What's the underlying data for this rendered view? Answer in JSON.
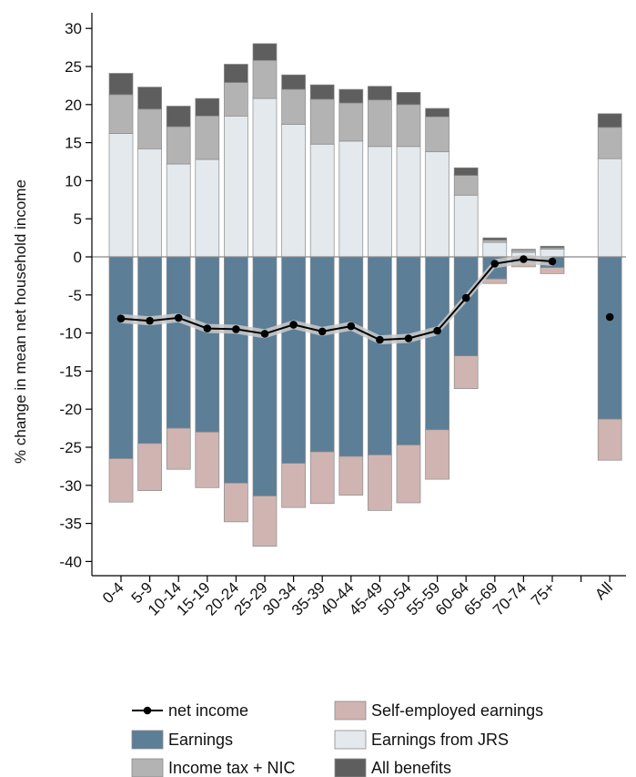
{
  "chart_data": {
    "type": "bar",
    "stacked": true,
    "ylabel": "% change in mean net household income",
    "xlabel": "",
    "ylim": [
      -42,
      32
    ],
    "yticks": [
      30,
      25,
      20,
      15,
      10,
      5,
      0,
      -5,
      -10,
      -15,
      -20,
      -25,
      -30,
      -35,
      -40
    ],
    "categories": [
      "0-4",
      "5-9",
      "10-14",
      "15-19",
      "20-24",
      "25-29",
      "30-34",
      "35-39",
      "40-44",
      "45-49",
      "50-54",
      "55-59",
      "60-64",
      "65-69",
      "70-74",
      "75+",
      "All"
    ],
    "category_slots": [
      0,
      1,
      2,
      3,
      4,
      5,
      6,
      7,
      8,
      9,
      10,
      11,
      12,
      13,
      14,
      15,
      17
    ],
    "gridlines": false,
    "legend_position": "bottom",
    "series": [
      {
        "name": "Earnings",
        "color": "#5c7e97",
        "values": [
          -26.5,
          -24.5,
          -22.5,
          -23,
          -29.7,
          -31.4,
          -27.1,
          -25.6,
          -26.2,
          -26,
          -24.7,
          -22.7,
          -13,
          -2.9,
          -0.8,
          -1.4,
          -21.3
        ]
      },
      {
        "name": "Self-employed earnings",
        "color": "#cfb4b1",
        "values": [
          -5.7,
          -6.2,
          -5.4,
          -7.3,
          -5.1,
          -6.6,
          -5.8,
          -6.8,
          -5.1,
          -7.3,
          -7.6,
          -6.5,
          -4.3,
          -0.6,
          -0.5,
          -0.8,
          -5.4
        ]
      },
      {
        "name": "Earnings from JRS",
        "color": "#e3e9ed",
        "values": [
          16.2,
          14.2,
          12.2,
          12.8,
          18.5,
          20.8,
          17.4,
          14.8,
          15.2,
          14.5,
          14.5,
          13.8,
          8.1,
          1.9,
          0.6,
          1.0,
          12.9
        ]
      },
      {
        "name": "Income tax + NIC",
        "color": "#b3b3b3",
        "values": [
          5.1,
          5.2,
          4.9,
          5.7,
          4.4,
          5.0,
          4.6,
          5.9,
          5.0,
          6.1,
          5.5,
          4.6,
          2.6,
          0.3,
          0.3,
          0.2,
          4.1
        ]
      },
      {
        "name": "All benefits",
        "color": "#5e5e5e",
        "values": [
          2.8,
          2.9,
          2.7,
          2.3,
          2.4,
          2.2,
          1.9,
          1.9,
          1.8,
          1.8,
          1.6,
          1.1,
          1.0,
          0.3,
          0.1,
          0.2,
          1.8
        ]
      }
    ],
    "line": {
      "name": "net income",
      "values": [
        -8.1,
        -8.4,
        -8.0,
        -9.4,
        -9.5,
        -10.1,
        -8.9,
        -9.8,
        -9.1,
        -10.9,
        -10.7,
        -9.7,
        -5.4,
        -0.9,
        -0.3,
        -0.6
      ],
      "standalone": {
        "category": "All",
        "value": -7.9
      },
      "ci_halfwidth": 0.6
    },
    "legend": [
      [
        "net income",
        "Self-employed earnings"
      ],
      [
        "Earnings",
        "Earnings from JRS"
      ],
      [
        "Income tax + NIC",
        "All benefits"
      ]
    ]
  }
}
